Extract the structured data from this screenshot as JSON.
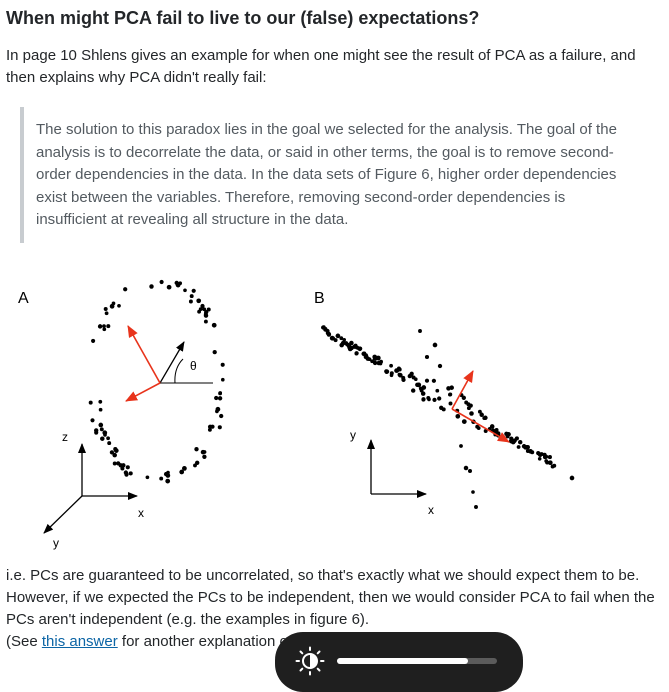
{
  "question": {
    "title": "When might PCA fail to live to our (false) expectations?",
    "intro": "In page 10 Shlens gives an example for when one might see the result of PCA as a failure, and then explains why PCA didn't really fail:",
    "quote": "The solution to this paradox lies in the goal we selected for the analysis. The goal of the analysis is to decorrelate the data, or said in other terms, the goal is to remove second-order dependencies in the data. In the data sets of Figure 6, higher order dependencies exist between the variables. Therefore, removing second-order dependencies is insufficient at revealing all structure in the data."
  },
  "figure": {
    "panel_a": {
      "label": "A",
      "axis_z": "z",
      "axis_x": "x",
      "axis_y": "y",
      "angle_label": "θ"
    },
    "panel_b": {
      "label": "B",
      "axis_y": "y",
      "axis_x": "x"
    },
    "colors": {
      "points": "#000000",
      "arrows": "#e8341c"
    }
  },
  "answer": {
    "line1": "i.e. PCs are guaranteed to be uncorrelated, so that's exactly what we should expect them to be. However, if we expected the PCs to be independent, then we would consider PCA to fail when the PCs aren't independent (e.g. the examples in figure 6).",
    "see_prefix": "(See ",
    "link_text": "this answer",
    "see_suffix": " for another explanation o"
  },
  "overlay": {
    "icon": "brightness-icon",
    "level": 0.82
  }
}
